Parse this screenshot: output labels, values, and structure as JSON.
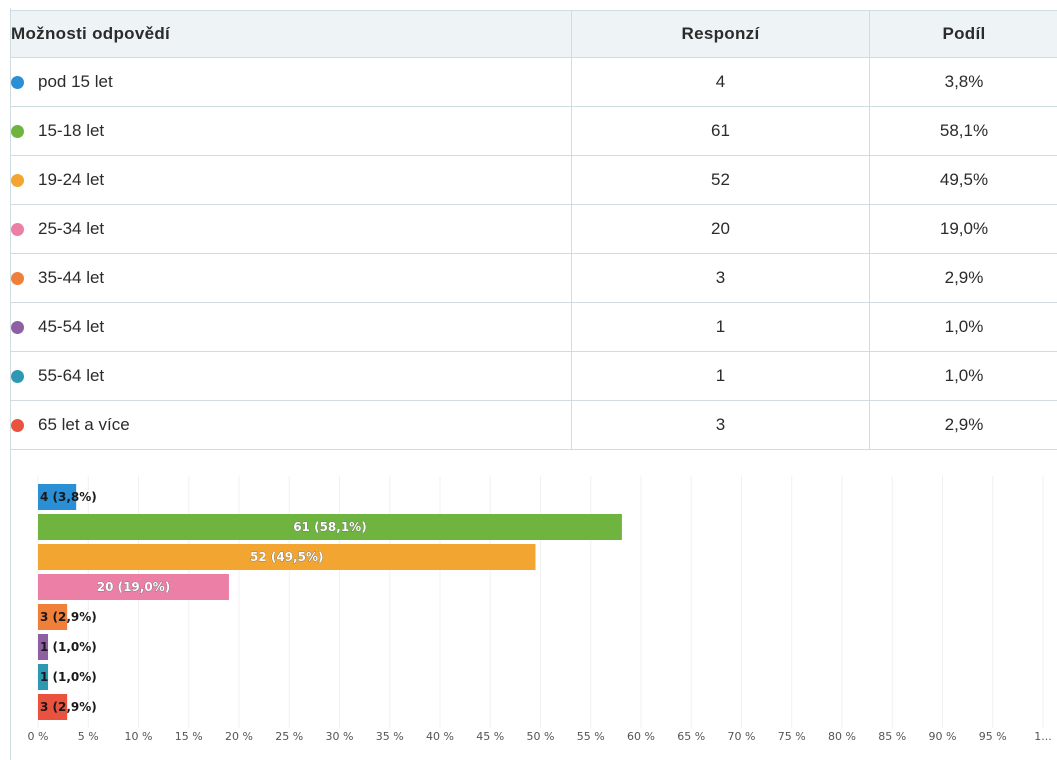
{
  "table": {
    "headers": {
      "option": "Možnosti odpovědí",
      "count": "Responzí",
      "share": "Podíl"
    },
    "rows": [
      {
        "label": "pod 15 let",
        "count": "4",
        "share": "3,8%",
        "color": "#2b8fd6"
      },
      {
        "label": "15-18 let",
        "count": "61",
        "share": "58,1%",
        "color": "#6fb43f"
      },
      {
        "label": "19-24 let",
        "count": "52",
        "share": "49,5%",
        "color": "#f2a531"
      },
      {
        "label": "25-34 let",
        "count": "20",
        "share": "19,0%",
        "color": "#ec7fa6"
      },
      {
        "label": "35-44 let",
        "count": "3",
        "share": "2,9%",
        "color": "#f07f3a"
      },
      {
        "label": "45-54 let",
        "count": "1",
        "share": "1,0%",
        "color": "#8e5fa3"
      },
      {
        "label": "55-64 let",
        "count": "1",
        "share": "1,0%",
        "color": "#2e98b3"
      },
      {
        "label": "65 let a více",
        "count": "3",
        "share": "2,9%",
        "color": "#e9523e"
      }
    ]
  },
  "chart_data": {
    "type": "bar",
    "orientation": "horizontal",
    "categories": [
      "pod 15 let",
      "15-18 let",
      "19-24 let",
      "25-34 let",
      "35-44 let",
      "45-54 let",
      "55-64 let",
      "65 let a více"
    ],
    "values": [
      3.8,
      58.1,
      49.5,
      19.0,
      2.9,
      1.0,
      1.0,
      2.9
    ],
    "counts": [
      4,
      61,
      52,
      20,
      3,
      1,
      1,
      3
    ],
    "data_labels": [
      "4 (3,8%)",
      "61 (58,1%)",
      "52 (49,5%)",
      "20 (19,0%)",
      "3 (2,9%)",
      "1 (1,0%)",
      "1 (1,0%)",
      "3 (2,9%)"
    ],
    "colors": [
      "#2b8fd6",
      "#6fb43f",
      "#f2a531",
      "#ec7fa6",
      "#f07f3a",
      "#8e5fa3",
      "#2e98b3",
      "#e9523e"
    ],
    "xlim": [
      0,
      100
    ],
    "x_ticks": [
      "0 %",
      "5 %",
      "10 %",
      "15 %",
      "20 %",
      "25 %",
      "30 %",
      "35 %",
      "40 %",
      "45 %",
      "50 %",
      "55 %",
      "60 %",
      "65 %",
      "70 %",
      "75 %",
      "80 %",
      "85 %",
      "90 %",
      "95 %",
      "1..."
    ],
    "grid": true,
    "title": "",
    "xlabel": "",
    "ylabel": ""
  }
}
